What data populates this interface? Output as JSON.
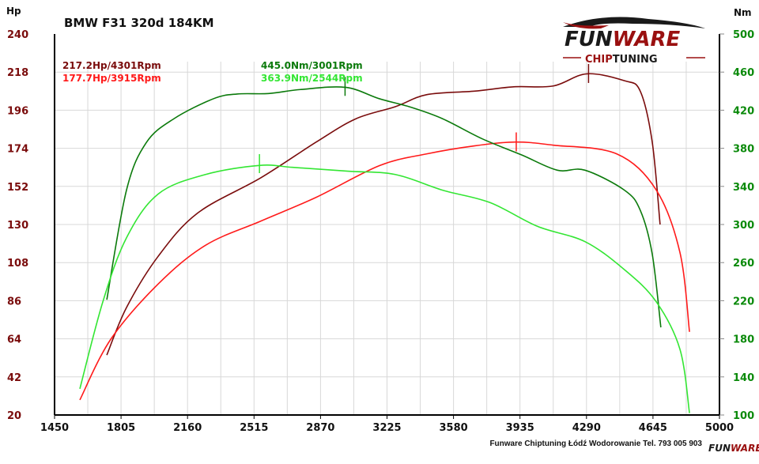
{
  "chart_data": {
    "type": "line",
    "title": "BMW F31 320d 184KM",
    "ylabel_left": "Hp",
    "ylabel_right": "Nm",
    "xlabel": "",
    "xlim": [
      1450,
      5000
    ],
    "ylim_left": [
      20,
      240
    ],
    "ylim_right": [
      100,
      500
    ],
    "x_ticks": [
      1450,
      1805,
      2160,
      2515,
      2870,
      3225,
      3580,
      3935,
      4290,
      4645,
      5000
    ],
    "y_ticks_left": [
      20,
      42,
      64,
      86,
      108,
      130,
      152,
      174,
      196,
      218,
      240
    ],
    "y_ticks_right": [
      100,
      140,
      180,
      220,
      260,
      300,
      340,
      380,
      420,
      460,
      500
    ],
    "grid": true,
    "colors": {
      "tuned_hp": "#7a0c0c",
      "stock_hp": "#ff1a1a",
      "tuned_nm": "#0b7a0b",
      "stock_nm": "#33e633"
    },
    "annotations": {
      "tuned_hp": "217.2Hp/4301Rpm",
      "stock_hp": "177.7Hp/3915Rpm",
      "tuned_nm": "445.0Nm/3001Rpm",
      "stock_nm": "363.9Nm/2544Rpm"
    },
    "series": [
      {
        "name": "tuned_hp",
        "axis": "left",
        "peak": [
          4301,
          217.2
        ],
        "x": [
          1729,
          1834,
          2003,
          2214,
          2552,
          2847,
          3058,
          3269,
          3438,
          3691,
          3902,
          4113,
          4291,
          4493,
          4577,
          4641,
          4683
        ],
        "y": [
          54.6,
          82,
          111.6,
          136.6,
          157,
          177.6,
          191,
          198,
          205,
          207,
          209.5,
          210,
          217,
          213,
          207,
          177.6,
          130
        ]
      },
      {
        "name": "stock_hp",
        "axis": "left",
        "peak": [
          3915,
          177.7
        ],
        "x": [
          1585,
          1750,
          2003,
          2256,
          2552,
          2847,
          3185,
          3438,
          3691,
          3911,
          4113,
          4451,
          4662,
          4789,
          4840
        ],
        "y": [
          28.7,
          63.7,
          95.6,
          118,
          132,
          145.7,
          164,
          170.8,
          175.4,
          177.6,
          175.8,
          170.8,
          150,
          113.8,
          68
        ]
      },
      {
        "name": "tuned_nm",
        "axis": "right",
        "peak": [
          3001,
          445.0
        ],
        "x": [
          1729,
          1834,
          1940,
          2087,
          2298,
          2425,
          2594,
          2763,
          3003,
          3185,
          3354,
          3522,
          3733,
          3944,
          4134,
          4282,
          4493,
          4577,
          4641,
          4687
        ],
        "y": [
          221,
          336,
          386,
          411,
          432,
          437,
          437.5,
          441.7,
          444,
          432,
          423,
          411,
          390,
          373,
          357,
          357,
          336,
          315,
          269,
          192
        ]
      },
      {
        "name": "stock_nm",
        "axis": "right",
        "peak": [
          2544,
          363.9
        ],
        "x": [
          1585,
          1708,
          1834,
          2003,
          2256,
          2543,
          2721,
          3016,
          3269,
          3522,
          3775,
          4029,
          4282,
          4493,
          4662,
          4789,
          4840
        ],
        "y": [
          127.5,
          219,
          286,
          332,
          352.5,
          362,
          360,
          356,
          352.5,
          336,
          323,
          298,
          282,
          252.5,
          219,
          169,
          102
        ]
      }
    ]
  },
  "logo": {
    "brand": "FUNWARE",
    "sub": "CHIPTUNING"
  },
  "footer": "Funware Chiptuning Łódź Wodorowanie Tel. 793 005 903"
}
